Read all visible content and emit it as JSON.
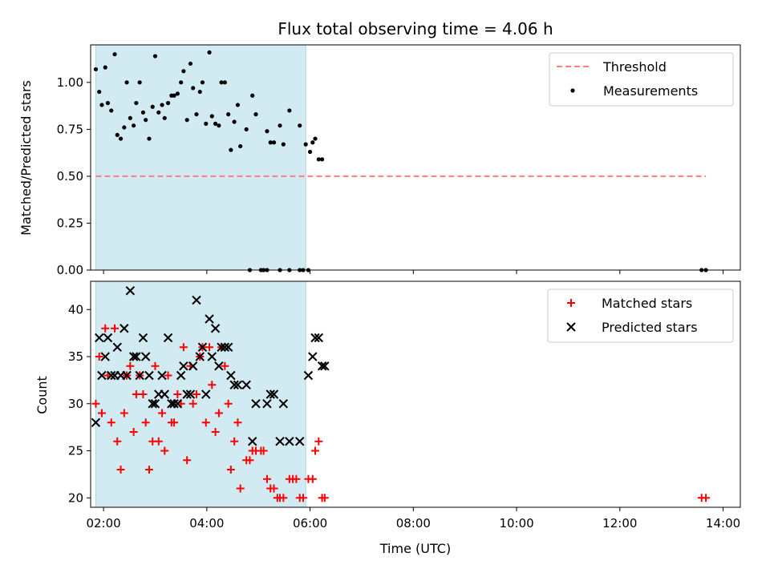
{
  "chart_data": [
    {
      "type": "scatter",
      "title": "Flux total observing time = 4.06 h",
      "ylabel": "Matched/Predicted stars",
      "xlabel": "",
      "xlim": [
        "01:45",
        "14:20"
      ],
      "ylim": [
        0.0,
        1.2
      ],
      "yticks": [
        "0.00",
        "0.25",
        "0.50",
        "0.75",
        "1.00"
      ],
      "ytick_values": [
        0.0,
        0.25,
        0.5,
        0.75,
        1.0
      ],
      "xtick_values": [
        "02:00",
        "04:00",
        "06:00",
        "08:00",
        "10:00",
        "12:00",
        "14:00"
      ],
      "shaded_span": [
        "01:51",
        "05:55"
      ],
      "shade_color": "#add8e6",
      "legend": [
        "Threshold",
        "Measurements"
      ],
      "legend_position": "upper-right",
      "threshold": {
        "name": "Threshold",
        "y": 0.5,
        "x_range": [
          "01:51",
          "13:40"
        ],
        "color": "#ff7f7f"
      },
      "series": [
        {
          "name": "Measurements",
          "color": "#000000",
          "points": [
            [
              "01:51",
              1.07
            ],
            [
              "01:55",
              0.95
            ],
            [
              "01:58",
              0.88
            ],
            [
              "02:02",
              1.08
            ],
            [
              "02:05",
              0.89
            ],
            [
              "02:09",
              0.85
            ],
            [
              "02:13",
              1.15
            ],
            [
              "02:16",
              0.72
            ],
            [
              "02:20",
              0.7
            ],
            [
              "02:24",
              0.76
            ],
            [
              "02:27",
              1.0
            ],
            [
              "02:31",
              0.81
            ],
            [
              "02:35",
              0.77
            ],
            [
              "02:38",
              0.89
            ],
            [
              "02:42",
              1.0
            ],
            [
              "02:46",
              0.84
            ],
            [
              "02:49",
              0.8
            ],
            [
              "02:53",
              0.7
            ],
            [
              "02:57",
              0.87
            ],
            [
              "03:00",
              1.14
            ],
            [
              "03:04",
              0.84
            ],
            [
              "03:08",
              0.88
            ],
            [
              "03:11",
              0.81
            ],
            [
              "03:15",
              0.89
            ],
            [
              "03:19",
              0.93
            ],
            [
              "03:22",
              0.93
            ],
            [
              "03:26",
              0.94
            ],
            [
              "03:30",
              1.0
            ],
            [
              "03:33",
              1.06
            ],
            [
              "03:37",
              0.8
            ],
            [
              "03:41",
              1.1
            ],
            [
              "03:44",
              0.97
            ],
            [
              "03:48",
              0.83
            ],
            [
              "03:52",
              0.95
            ],
            [
              "03:55",
              1.0
            ],
            [
              "03:59",
              0.78
            ],
            [
              "04:03",
              1.16
            ],
            [
              "04:06",
              0.82
            ],
            [
              "04:10",
              0.78
            ],
            [
              "04:14",
              0.77
            ],
            [
              "04:17",
              1.0
            ],
            [
              "04:21",
              1.0
            ],
            [
              "04:25",
              0.83
            ],
            [
              "04:28",
              0.64
            ],
            [
              "04:32",
              0.79
            ],
            [
              "04:36",
              0.88
            ],
            [
              "04:39",
              0.66
            ],
            [
              "04:46",
              0.75
            ],
            [
              "04:53",
              0.93
            ],
            [
              "04:57",
              0.83
            ],
            [
              "05:10",
              0.74
            ],
            [
              "05:14",
              0.68
            ],
            [
              "05:18",
              0.68
            ],
            [
              "05:25",
              0.77
            ],
            [
              "05:29",
              0.67
            ],
            [
              "05:36",
              0.85
            ],
            [
              "05:48",
              0.77
            ],
            [
              "05:55",
              0.67
            ],
            [
              "06:00",
              0.63
            ],
            [
              "06:03",
              0.68
            ],
            [
              "06:06",
              0.7
            ],
            [
              "06:10",
              0.59
            ],
            [
              "06:14",
              0.59
            ],
            [
              "04:50",
              0.0
            ],
            [
              "05:03",
              0.0
            ],
            [
              "05:06",
              0.0
            ],
            [
              "05:10",
              0.0
            ],
            [
              "05:25",
              0.0
            ],
            [
              "05:36",
              0.0
            ],
            [
              "05:48",
              0.0
            ],
            [
              "05:52",
              0.0
            ],
            [
              "05:58",
              0.0
            ],
            [
              "13:35",
              0.0
            ],
            [
              "13:40",
              0.0
            ]
          ]
        }
      ]
    },
    {
      "type": "scatter",
      "title": "",
      "ylabel": "Count",
      "xlabel": "Time (UTC)",
      "xlim": [
        "01:45",
        "14:20"
      ],
      "ylim": [
        19,
        43
      ],
      "yticks": [
        "20",
        "25",
        "30",
        "35",
        "40"
      ],
      "ytick_values": [
        20,
        25,
        30,
        35,
        40
      ],
      "xticks": [
        "02:00",
        "04:00",
        "06:00",
        "08:00",
        "10:00",
        "12:00",
        "14:00"
      ],
      "xtick_values": [
        "02:00",
        "04:00",
        "06:00",
        "08:00",
        "10:00",
        "12:00",
        "14:00"
      ],
      "shaded_span": [
        "01:51",
        "05:55"
      ],
      "shade_color": "#add8e6",
      "legend": [
        "Matched stars",
        "Predicted stars"
      ],
      "legend_position": "upper-right",
      "series": [
        {
          "name": "Matched stars",
          "color": "#ff0000",
          "marker": "plus",
          "points": [
            [
              "01:51",
              30
            ],
            [
              "01:55",
              35
            ],
            [
              "01:58",
              29
            ],
            [
              "02:02",
              38
            ],
            [
              "02:05",
              33
            ],
            [
              "02:09",
              28
            ],
            [
              "02:13",
              38
            ],
            [
              "02:16",
              26
            ],
            [
              "02:20",
              23
            ],
            [
              "02:24",
              29
            ],
            [
              "02:27",
              33
            ],
            [
              "02:31",
              34
            ],
            [
              "02:35",
              27
            ],
            [
              "02:38",
              31
            ],
            [
              "02:42",
              33
            ],
            [
              "02:46",
              31
            ],
            [
              "02:49",
              28
            ],
            [
              "02:53",
              23
            ],
            [
              "02:57",
              26
            ],
            [
              "03:00",
              34
            ],
            [
              "03:04",
              26
            ],
            [
              "03:08",
              29
            ],
            [
              "03:11",
              25
            ],
            [
              "03:15",
              33
            ],
            [
              "03:19",
              28
            ],
            [
              "03:22",
              28
            ],
            [
              "03:26",
              31
            ],
            [
              "03:30",
              30
            ],
            [
              "03:33",
              36
            ],
            [
              "03:37",
              24
            ],
            [
              "03:41",
              34
            ],
            [
              "03:44",
              30
            ],
            [
              "03:48",
              31
            ],
            [
              "03:52",
              35
            ],
            [
              "03:55",
              36
            ],
            [
              "03:59",
              28
            ],
            [
              "04:03",
              36
            ],
            [
              "04:06",
              32
            ],
            [
              "04:10",
              27
            ],
            [
              "04:14",
              29
            ],
            [
              "04:17",
              36
            ],
            [
              "04:21",
              34
            ],
            [
              "04:25",
              30
            ],
            [
              "04:28",
              23
            ],
            [
              "04:32",
              26
            ],
            [
              "04:36",
              28
            ],
            [
              "04:39",
              21
            ],
            [
              "04:46",
              24
            ],
            [
              "04:50",
              24
            ],
            [
              "04:53",
              25
            ],
            [
              "04:57",
              25
            ],
            [
              "05:03",
              25
            ],
            [
              "05:06",
              25
            ],
            [
              "05:10",
              22
            ],
            [
              "05:14",
              21
            ],
            [
              "05:18",
              21
            ],
            [
              "05:22",
              20
            ],
            [
              "05:25",
              20
            ],
            [
              "05:29",
              20
            ],
            [
              "05:36",
              22
            ],
            [
              "05:40",
              22
            ],
            [
              "05:44",
              22
            ],
            [
              "05:48",
              20
            ],
            [
              "05:52",
              20
            ],
            [
              "05:58",
              22
            ],
            [
              "06:03",
              22
            ],
            [
              "06:06",
              25
            ],
            [
              "06:10",
              26
            ],
            [
              "06:14",
              20
            ],
            [
              "06:17",
              20
            ],
            [
              "13:35",
              20
            ],
            [
              "13:40",
              20
            ]
          ]
        },
        {
          "name": "Predicted stars",
          "color": "#000000",
          "marker": "x",
          "points": [
            [
              "01:51",
              28
            ],
            [
              "01:55",
              37
            ],
            [
              "01:58",
              33
            ],
            [
              "02:02",
              35
            ],
            [
              "02:05",
              37
            ],
            [
              "02:09",
              33
            ],
            [
              "02:13",
              33
            ],
            [
              "02:16",
              36
            ],
            [
              "02:20",
              33
            ],
            [
              "02:24",
              38
            ],
            [
              "02:27",
              33
            ],
            [
              "02:31",
              42
            ],
            [
              "02:35",
              35
            ],
            [
              "02:38",
              35
            ],
            [
              "02:42",
              33
            ],
            [
              "02:46",
              37
            ],
            [
              "02:49",
              35
            ],
            [
              "02:53",
              33
            ],
            [
              "02:57",
              30
            ],
            [
              "03:00",
              30
            ],
            [
              "03:04",
              31
            ],
            [
              "03:08",
              33
            ],
            [
              "03:11",
              31
            ],
            [
              "03:15",
              37
            ],
            [
              "03:19",
              30
            ],
            [
              "03:22",
              30
            ],
            [
              "03:26",
              30
            ],
            [
              "03:30",
              33
            ],
            [
              "03:33",
              34
            ],
            [
              "03:37",
              31
            ],
            [
              "03:41",
              31
            ],
            [
              "03:44",
              34
            ],
            [
              "03:48",
              41
            ],
            [
              "03:52",
              35
            ],
            [
              "03:55",
              36
            ],
            [
              "03:59",
              31
            ],
            [
              "04:03",
              39
            ],
            [
              "04:06",
              35
            ],
            [
              "04:10",
              38
            ],
            [
              "04:14",
              34
            ],
            [
              "04:17",
              36
            ],
            [
              "04:21",
              36
            ],
            [
              "04:25",
              36
            ],
            [
              "04:28",
              33
            ],
            [
              "04:32",
              32
            ],
            [
              "04:36",
              32
            ],
            [
              "04:46",
              32
            ],
            [
              "04:53",
              26
            ],
            [
              "04:57",
              30
            ],
            [
              "05:10",
              30
            ],
            [
              "05:14",
              31
            ],
            [
              "05:18",
              31
            ],
            [
              "05:25",
              26
            ],
            [
              "05:29",
              30
            ],
            [
              "05:36",
              26
            ],
            [
              "05:48",
              26
            ],
            [
              "05:58",
              33
            ],
            [
              "06:03",
              35
            ],
            [
              "06:06",
              37
            ],
            [
              "06:10",
              37
            ],
            [
              "06:14",
              34
            ],
            [
              "06:17",
              34
            ]
          ]
        }
      ]
    }
  ]
}
